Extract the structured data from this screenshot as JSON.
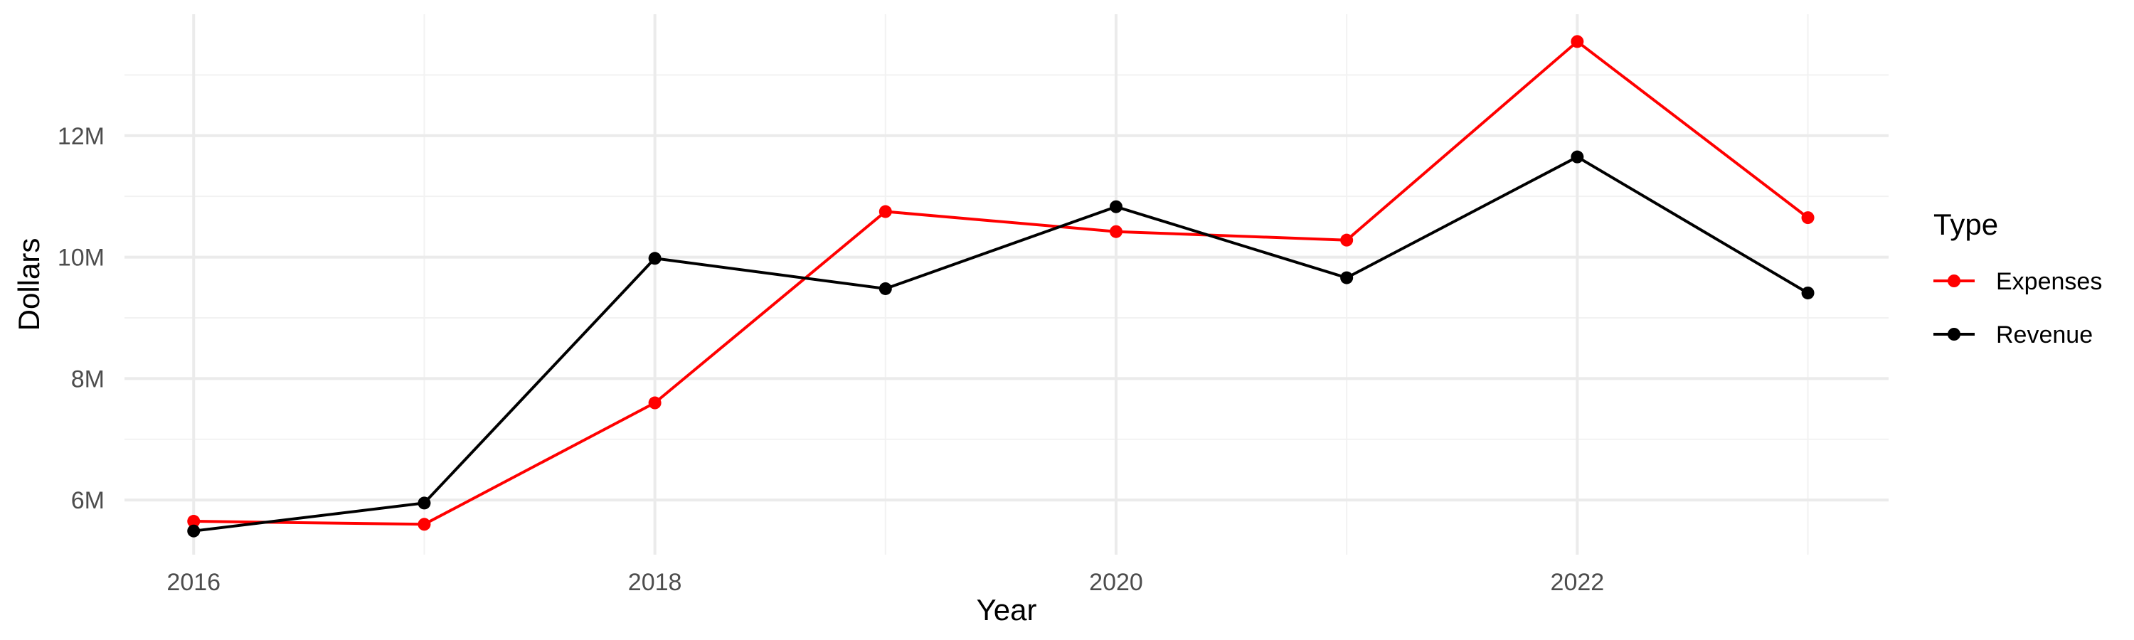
{
  "chart_data": {
    "type": "line",
    "title": "",
    "xlabel": "Year",
    "ylabel": "Dollars",
    "x": [
      2016,
      2017,
      2018,
      2019,
      2020,
      2021,
      2022,
      2023
    ],
    "x_ticks": [
      2016,
      2018,
      2020,
      2022
    ],
    "x_tick_labels": [
      "2016",
      "2018",
      "2020",
      "2022"
    ],
    "xlim": [
      2015.7,
      2023.35
    ],
    "y_ticks": [
      6000000,
      8000000,
      10000000,
      12000000
    ],
    "y_tick_labels": [
      "6M",
      "8M",
      "10M",
      "12M"
    ],
    "ylim": [
      5100000,
      14000000
    ],
    "grid": true,
    "legend": {
      "title": "Type",
      "position": "right"
    },
    "series": [
      {
        "name": "Expenses",
        "color": "#ff0000",
        "values": [
          5650000,
          5600000,
          7600000,
          10750000,
          10420000,
          10280000,
          13550000,
          10650000
        ]
      },
      {
        "name": "Revenue",
        "color": "#000000",
        "values": [
          5490000,
          5950000,
          9980000,
          9480000,
          10830000,
          9660000,
          11650000,
          9410000
        ]
      }
    ]
  }
}
